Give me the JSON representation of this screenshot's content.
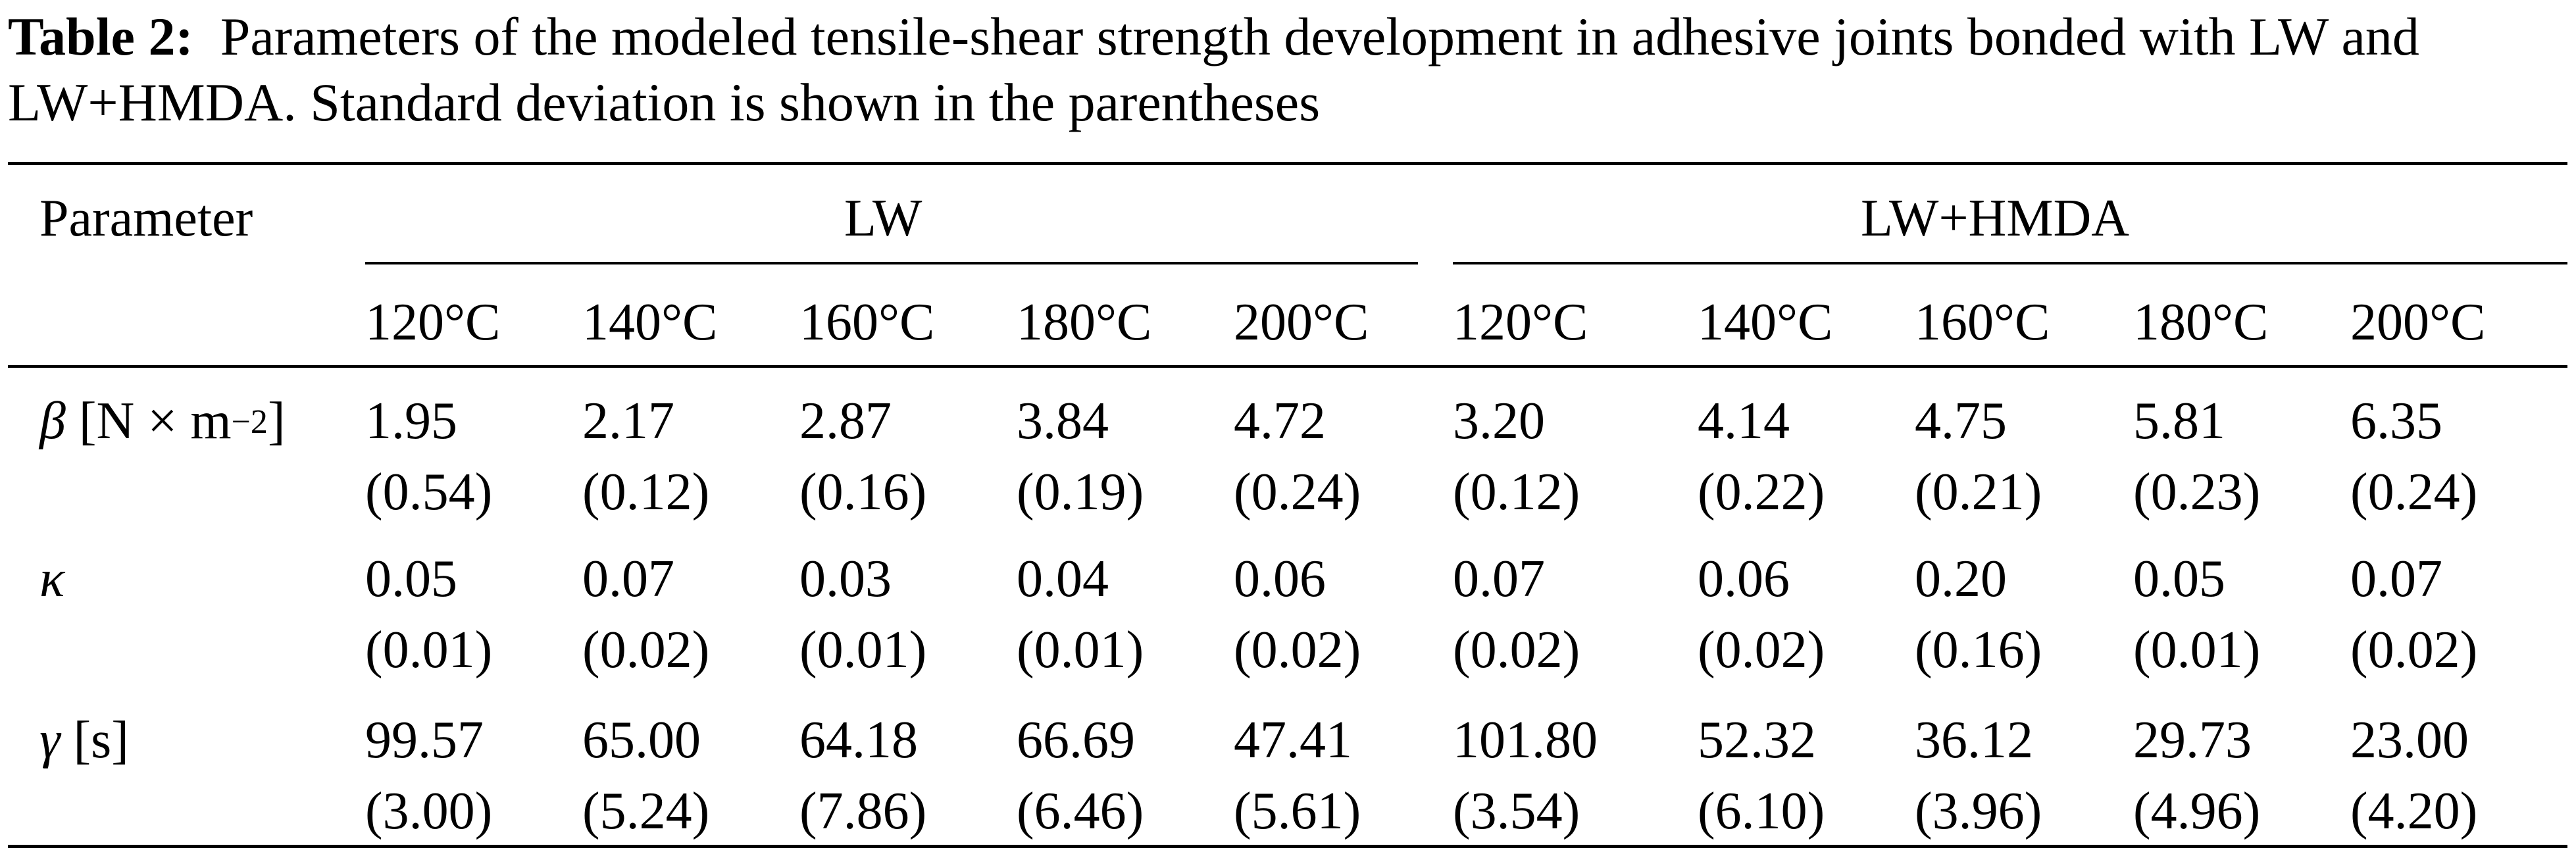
{
  "caption": {
    "label": "Table 2:",
    "text": "Parameters of the modeled tensile-shear strength development in adhesive joints bonded with LW and LW+HMDA. Standard deviation is shown in the parentheses"
  },
  "table": {
    "param_header": "Parameter",
    "groups": [
      {
        "name": "LW",
        "temps": [
          "120°C",
          "140°C",
          "160°C",
          "180°C",
          "200°C"
        ]
      },
      {
        "name": "LW+HMDA",
        "temps": [
          "120°C",
          "140°C",
          "160°C",
          "180°C",
          "200°C"
        ]
      }
    ],
    "rows": [
      {
        "symbol": "β",
        "unit_pre": " [N × m",
        "unit_sup": "−2",
        "unit_post": "]",
        "values": [
          "1.95",
          "2.17",
          "2.87",
          "3.84",
          "4.72",
          "3.20",
          "4.14",
          "4.75",
          "5.81",
          "6.35"
        ],
        "sd": [
          "(0.54)",
          "(0.12)",
          "(0.16)",
          "(0.19)",
          "(0.24)",
          "(0.12)",
          "(0.22)",
          "(0.21)",
          "(0.23)",
          "(0.24)"
        ]
      },
      {
        "symbol": "κ",
        "unit_pre": "",
        "unit_sup": "",
        "unit_post": "",
        "values": [
          "0.05",
          "0.07",
          "0.03",
          "0.04",
          "0.06",
          "0.07",
          "0.06",
          "0.20",
          "0.05",
          "0.07"
        ],
        "sd": [
          "(0.01)",
          "(0.02)",
          "(0.01)",
          "(0.01)",
          "(0.02)",
          "(0.02)",
          "(0.02)",
          "(0.16)",
          "(0.01)",
          "(0.02)"
        ]
      },
      {
        "symbol": "γ",
        "unit_pre": " [s]",
        "unit_sup": "",
        "unit_post": "",
        "values": [
          "99.57",
          "65.00",
          "64.18",
          "66.69",
          "47.41",
          "101.80",
          "52.32",
          "36.12",
          "29.73",
          "23.00"
        ],
        "sd": [
          "(3.00)",
          "(5.24)",
          "(7.86)",
          "(6.46)",
          "(5.61)",
          "(3.54)",
          "(6.10)",
          "(3.96)",
          "(4.96)",
          "(4.20)"
        ]
      }
    ]
  }
}
